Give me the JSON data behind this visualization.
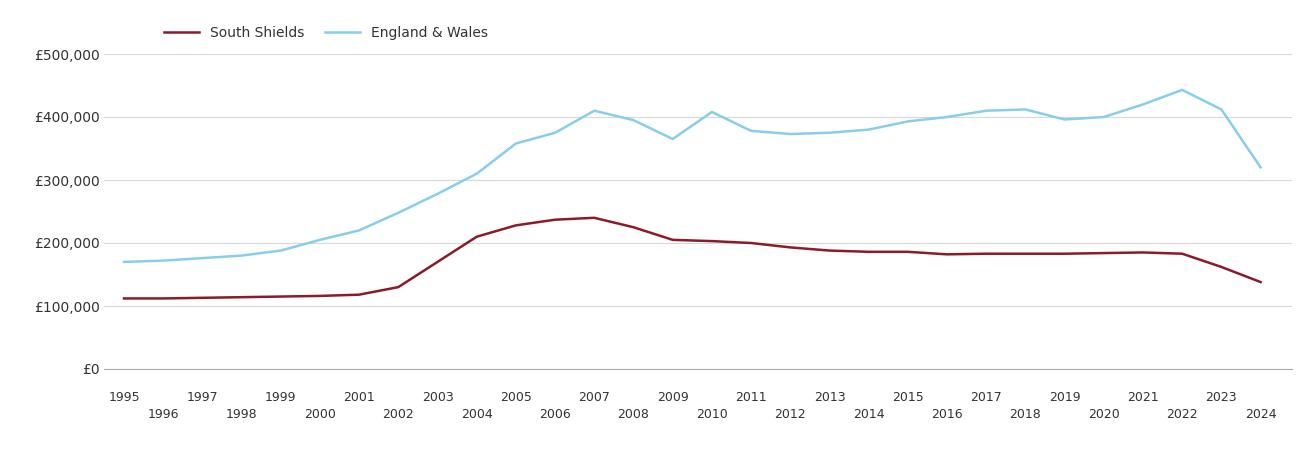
{
  "years": [
    1995,
    1996,
    1997,
    1998,
    1999,
    2000,
    2001,
    2002,
    2003,
    2004,
    2005,
    2006,
    2007,
    2008,
    2009,
    2010,
    2011,
    2012,
    2013,
    2014,
    2015,
    2016,
    2017,
    2018,
    2019,
    2020,
    2021,
    2022,
    2023,
    2024
  ],
  "south_shields": [
    112000,
    112000,
    113000,
    114000,
    115000,
    116000,
    118000,
    130000,
    170000,
    210000,
    228000,
    237000,
    240000,
    225000,
    205000,
    203000,
    200000,
    193000,
    188000,
    186000,
    186000,
    182000,
    183000,
    183000,
    183000,
    184000,
    185000,
    183000,
    162000,
    138000
  ],
  "england_wales": [
    170000,
    172000,
    176000,
    180000,
    188000,
    205000,
    220000,
    248000,
    278000,
    310000,
    358000,
    375000,
    410000,
    395000,
    365000,
    408000,
    378000,
    373000,
    375000,
    380000,
    393000,
    400000,
    410000,
    412000,
    396000,
    400000,
    420000,
    443000,
    412000,
    320000
  ],
  "south_shields_color": "#8B1A2A",
  "england_wales_color": "#87CEEB",
  "background_color": "#ffffff",
  "grid_color": "#d8d8d8",
  "legend_south_shields": "South Shields",
  "legend_england_wales": "England & Wales",
  "ylim": [
    0,
    500000
  ],
  "yticks": [
    0,
    100000,
    200000,
    300000,
    400000,
    500000
  ],
  "ytick_labels": [
    "£0",
    "£100,000",
    "£200,000",
    "£300,000",
    "£400,000",
    "£500,000"
  ],
  "line_width": 1.8,
  "xlim_left": 1994.5,
  "xlim_right": 2024.8
}
